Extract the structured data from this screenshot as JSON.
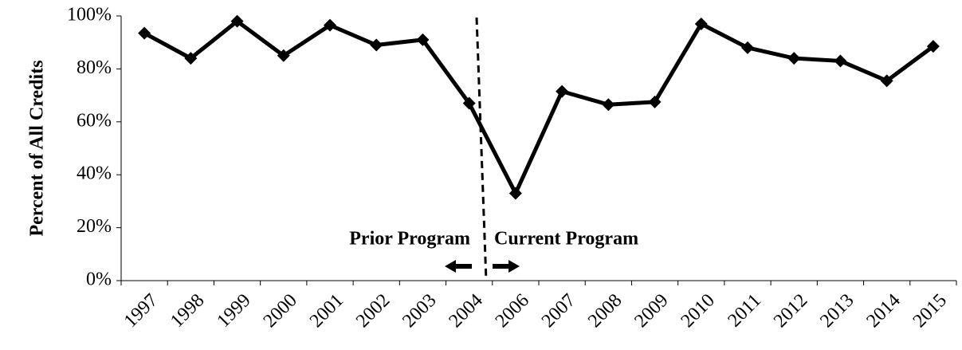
{
  "chart_data": {
    "type": "line",
    "y_label": "Percent of All Credits",
    "annotations": [
      "Prior Program",
      "Current Program"
    ],
    "categories": [
      "1997",
      "1998",
      "1999",
      "2000",
      "2001",
      "2002",
      "2003",
      "2004",
      "2006",
      "2007",
      "2008",
      "2009",
      "2010",
      "2011",
      "2012",
      "2013",
      "2014",
      "2015"
    ],
    "values": [
      93.5,
      84,
      98,
      85,
      96.5,
      89,
      91,
      67,
      33,
      71.5,
      66.5,
      67.5,
      97,
      88,
      84,
      83,
      75.5,
      88.5
    ],
    "color": "#000000",
    "ylim": [
      0,
      100
    ],
    "yticks": [
      {
        "value": 0,
        "label": "0%"
      },
      {
        "value": 20,
        "label": "20%"
      },
      {
        "value": 40,
        "label": "40%"
      },
      {
        "value": 60,
        "label": "60%"
      },
      {
        "value": 80,
        "label": "80%"
      },
      {
        "value": 100,
        "label": "100%"
      }
    ],
    "grid": false
  }
}
